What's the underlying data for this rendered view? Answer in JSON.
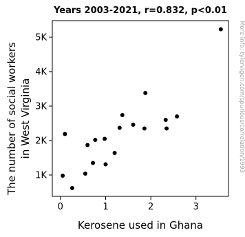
{
  "chart_data": {
    "type": "scatter",
    "title": "Years 2003-2021, r=0.832, p<0.01",
    "xlabel": "Kerosene used in Ghana",
    "ylabel_lines": [
      "The number of social workers",
      "in West Virginia"
    ],
    "watermark": "More info: tylervigen.com/spurious/correlation/1993",
    "xlim": [
      -0.18,
      3.72
    ],
    "ylim": [
      380,
      5480
    ],
    "xticks": [
      {
        "value": 0,
        "label": "0"
      },
      {
        "value": 1,
        "label": "1"
      },
      {
        "value": 2,
        "label": "2"
      },
      {
        "value": 3,
        "label": "3"
      }
    ],
    "yticks": [
      {
        "value": 1000,
        "label": "1K"
      },
      {
        "value": 2000,
        "label": "2K"
      },
      {
        "value": 3000,
        "label": "3K"
      },
      {
        "value": 4000,
        "label": "4K"
      },
      {
        "value": 5000,
        "label": "5K"
      }
    ],
    "grid": false,
    "points": [
      {
        "x": 0.05,
        "y": 980
      },
      {
        "x": 0.1,
        "y": 2190
      },
      {
        "x": 0.26,
        "y": 620
      },
      {
        "x": 0.55,
        "y": 1040
      },
      {
        "x": 0.6,
        "y": 1870
      },
      {
        "x": 0.72,
        "y": 1350
      },
      {
        "x": 0.77,
        "y": 2020
      },
      {
        "x": 0.98,
        "y": 2050
      },
      {
        "x": 1.0,
        "y": 1310
      },
      {
        "x": 1.2,
        "y": 1640
      },
      {
        "x": 1.31,
        "y": 2370
      },
      {
        "x": 1.37,
        "y": 2740
      },
      {
        "x": 1.61,
        "y": 2460
      },
      {
        "x": 1.86,
        "y": 2350
      },
      {
        "x": 1.88,
        "y": 3380
      },
      {
        "x": 2.33,
        "y": 2600
      },
      {
        "x": 2.35,
        "y": 2350
      },
      {
        "x": 2.58,
        "y": 2700
      },
      {
        "x": 3.55,
        "y": 5230
      }
    ]
  }
}
